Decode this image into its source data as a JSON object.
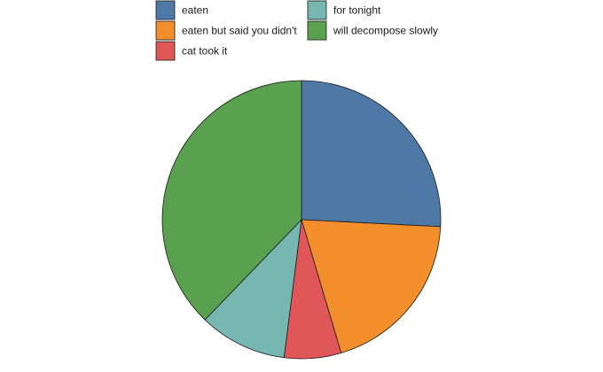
{
  "chart_data": {
    "type": "pie",
    "start_angle_deg": 0,
    "direction": "clockwise",
    "slices": [
      {
        "label": "eaten",
        "value": 25.8,
        "color": "#4e79a7"
      },
      {
        "label": "eaten but said you didn't",
        "value": 19.6,
        "color": "#f28e2b"
      },
      {
        "label": "cat took it",
        "value": 6.6,
        "color": "#e15759"
      },
      {
        "label": "for tonight",
        "value": 10.2,
        "color": "#76b7b2"
      },
      {
        "label": "will decompose slowly",
        "value": 37.8,
        "color": "#59a14f"
      }
    ],
    "legend": {
      "position": "top",
      "columns": 2,
      "order": [
        "eaten",
        "eaten but said you didn't",
        "cat took it",
        "for tonight",
        "will decompose slowly"
      ]
    },
    "slice_border_color": "#1a1a1a"
  }
}
